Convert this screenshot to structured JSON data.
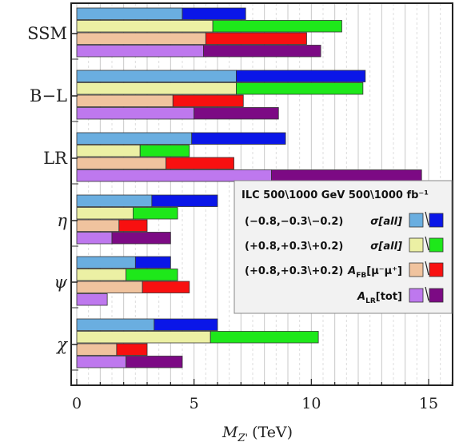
{
  "chart_data": {
    "type": "bar",
    "orientation": "horizontal",
    "xlabel": "M_{Z'} (TeV)",
    "xlabel_display": "(TeV)",
    "xlim": [
      -0.2,
      16.3
    ],
    "xticks": [
      0,
      5,
      10,
      15
    ],
    "grid": "vertical-dashed",
    "legend_position": "right-middle",
    "models": [
      {
        "label": "SSM",
        "italic": false,
        "bars": [
          [
            4.5,
            7.2
          ],
          [
            5.8,
            11.3
          ],
          [
            5.5,
            9.8
          ],
          [
            5.4,
            10.4
          ]
        ]
      },
      {
        "label": "B−L",
        "italic": false,
        "bars": [
          [
            6.8,
            12.3
          ],
          [
            6.8,
            12.2
          ],
          [
            4.1,
            7.1
          ],
          [
            5.0,
            8.6
          ]
        ]
      },
      {
        "label": "LR",
        "italic": false,
        "bars": [
          [
            4.9,
            8.9
          ],
          [
            2.7,
            4.8
          ],
          [
            3.8,
            6.7
          ],
          [
            8.3,
            14.7
          ]
        ]
      },
      {
        "label": "η",
        "italic": true,
        "bars": [
          [
            3.2,
            6.0
          ],
          [
            2.4,
            4.3
          ],
          [
            1.8,
            3.0
          ],
          [
            1.5,
            4.0
          ]
        ]
      },
      {
        "label": "ψ",
        "italic": true,
        "bars": [
          [
            2.5,
            4.0
          ],
          [
            2.1,
            4.3
          ],
          [
            2.8,
            4.8
          ],
          [
            1.3,
            1.3
          ]
        ]
      },
      {
        "label": "χ",
        "italic": true,
        "bars": [
          [
            3.3,
            6.0
          ],
          [
            5.7,
            10.3
          ],
          [
            1.7,
            3.0
          ],
          [
            2.1,
            4.5
          ]
        ]
      }
    ],
    "series": [
      {
        "name": "(−0.8,−0.3\\−0.2)  σ[all]",
        "colors": [
          "#6aaee0",
          "#0a16e8"
        ]
      },
      {
        "name": "(+0.8,+0.3\\+0.2)  σ[all]",
        "colors": [
          "#ecf0a4",
          "#1ee81a"
        ]
      },
      {
        "name": "(+0.8,+0.3\\+0.2)  A_FB[μ⁻μ⁺]",
        "colors": [
          "#f0c39e",
          "#f81010"
        ]
      },
      {
        "name": "A_LR[tot]",
        "colors": [
          "#be78ee",
          "#7c0a84"
        ]
      }
    ],
    "legend_title": "ILC 500\\1000 GeV 500\\1000 fb⁻¹",
    "legend_rows": [
      {
        "prefix": "(−0.8,−0.3\\−0.2)",
        "obs": "σ[all]"
      },
      {
        "prefix": "(+0.8,+0.3\\+0.2)",
        "obs": "σ[all]"
      },
      {
        "prefix": "(+0.8,+0.3\\+0.2)",
        "obs": "A",
        "obs_sub": "FB",
        "obs_tail": "[μ⁻μ⁺]"
      },
      {
        "prefix": "",
        "obs": "A",
        "obs_sub": "LR",
        "obs_tail": "[tot]"
      }
    ]
  }
}
